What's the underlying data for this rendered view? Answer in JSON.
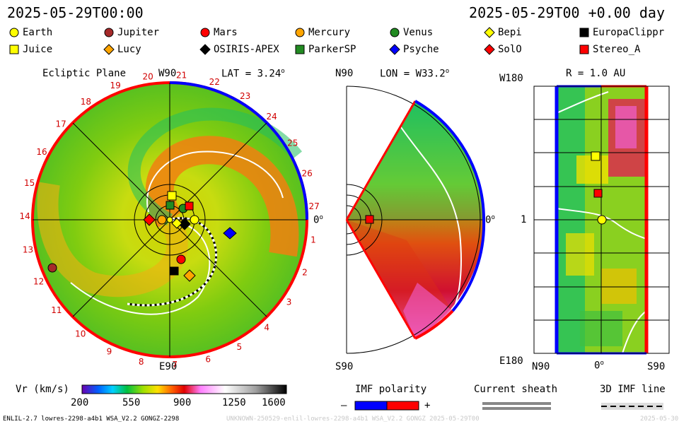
{
  "header": {
    "date_left": "2025-05-29T00:00",
    "date_right": "2025-05-29T00 +0.00 day"
  },
  "legend": [
    {
      "name": "Earth",
      "shape": "circle",
      "color": "#ffff00"
    },
    {
      "name": "Jupiter",
      "shape": "circle",
      "color": "#a52a2a"
    },
    {
      "name": "Mars",
      "shape": "circle",
      "color": "#ff0000"
    },
    {
      "name": "Mercury",
      "shape": "circle",
      "color": "#ffa500"
    },
    {
      "name": "Venus",
      "shape": "circle",
      "color": "#228b22"
    },
    {
      "name": "Bepi",
      "shape": "diamond",
      "color": "#ffff00"
    },
    {
      "name": "EuropaClippr",
      "shape": "square",
      "color": "#000000"
    },
    {
      "name": "Juice",
      "shape": "square",
      "color": "#ffff00"
    },
    {
      "name": "Lucy",
      "shape": "diamond",
      "color": "#ffa500"
    },
    {
      "name": "OSIRIS-APEX",
      "shape": "diamond",
      "color": "#000000"
    },
    {
      "name": "ParkerSP",
      "shape": "square",
      "color": "#228b22"
    },
    {
      "name": "Psyche",
      "shape": "diamond",
      "color": "#0000ff"
    },
    {
      "name": "SolO",
      "shape": "diamond",
      "color": "#ff0000"
    },
    {
      "name": "Stereo_A",
      "shape": "square",
      "color": "#ff0000"
    }
  ],
  "panel1": {
    "title": "Ecliptic Plane",
    "top_label": "W90",
    "lat_label": "LAT = 3.24",
    "right_label": "0",
    "bottom_label": "E90",
    "degree_mark": "o",
    "carrington_numbers": [
      "1",
      "2",
      "3",
      "4",
      "5",
      "6",
      "7",
      "8",
      "9",
      "10",
      "11",
      "12",
      "13",
      "14",
      "15",
      "16",
      "17",
      "18",
      "19",
      "20",
      "21",
      "22",
      "23",
      "24",
      "25",
      "26",
      "27"
    ]
  },
  "panel2": {
    "top_label": "N90",
    "lon_label": "LON = W33.2",
    "right_label": "0",
    "bottom_label": "S90",
    "degree_mark": "o"
  },
  "panel3": {
    "top_left_label": "W180",
    "r_label": "R = 1.0 AU",
    "mid_left_label": "1",
    "bottom_left_label": "E180",
    "bottom_labels": [
      "N90",
      "0",
      "S90"
    ],
    "degree_mark": "o"
  },
  "colorbar": {
    "label": "Vr (km/s)",
    "ticks": [
      "200",
      "550",
      "900",
      "1250",
      "1600"
    ]
  },
  "imf": {
    "label": "IMF polarity",
    "minus": "–",
    "plus": "+",
    "colors": [
      "#0000ff",
      "#ff0000"
    ]
  },
  "sheath": {
    "label": "Current sheath"
  },
  "imf3d": {
    "label": "3D IMF line"
  },
  "footer": {
    "model": "ENLIL-2.7 lowres-2298-a4b1 WSA_V2.2 GONGZ-2298",
    "run": "UNKNOWN-250529-enlil-lowres-2298-a4b1 WSA_V2.2 GONGZ 2025-05-29T00",
    "timestamp": "2025-05-30"
  }
}
